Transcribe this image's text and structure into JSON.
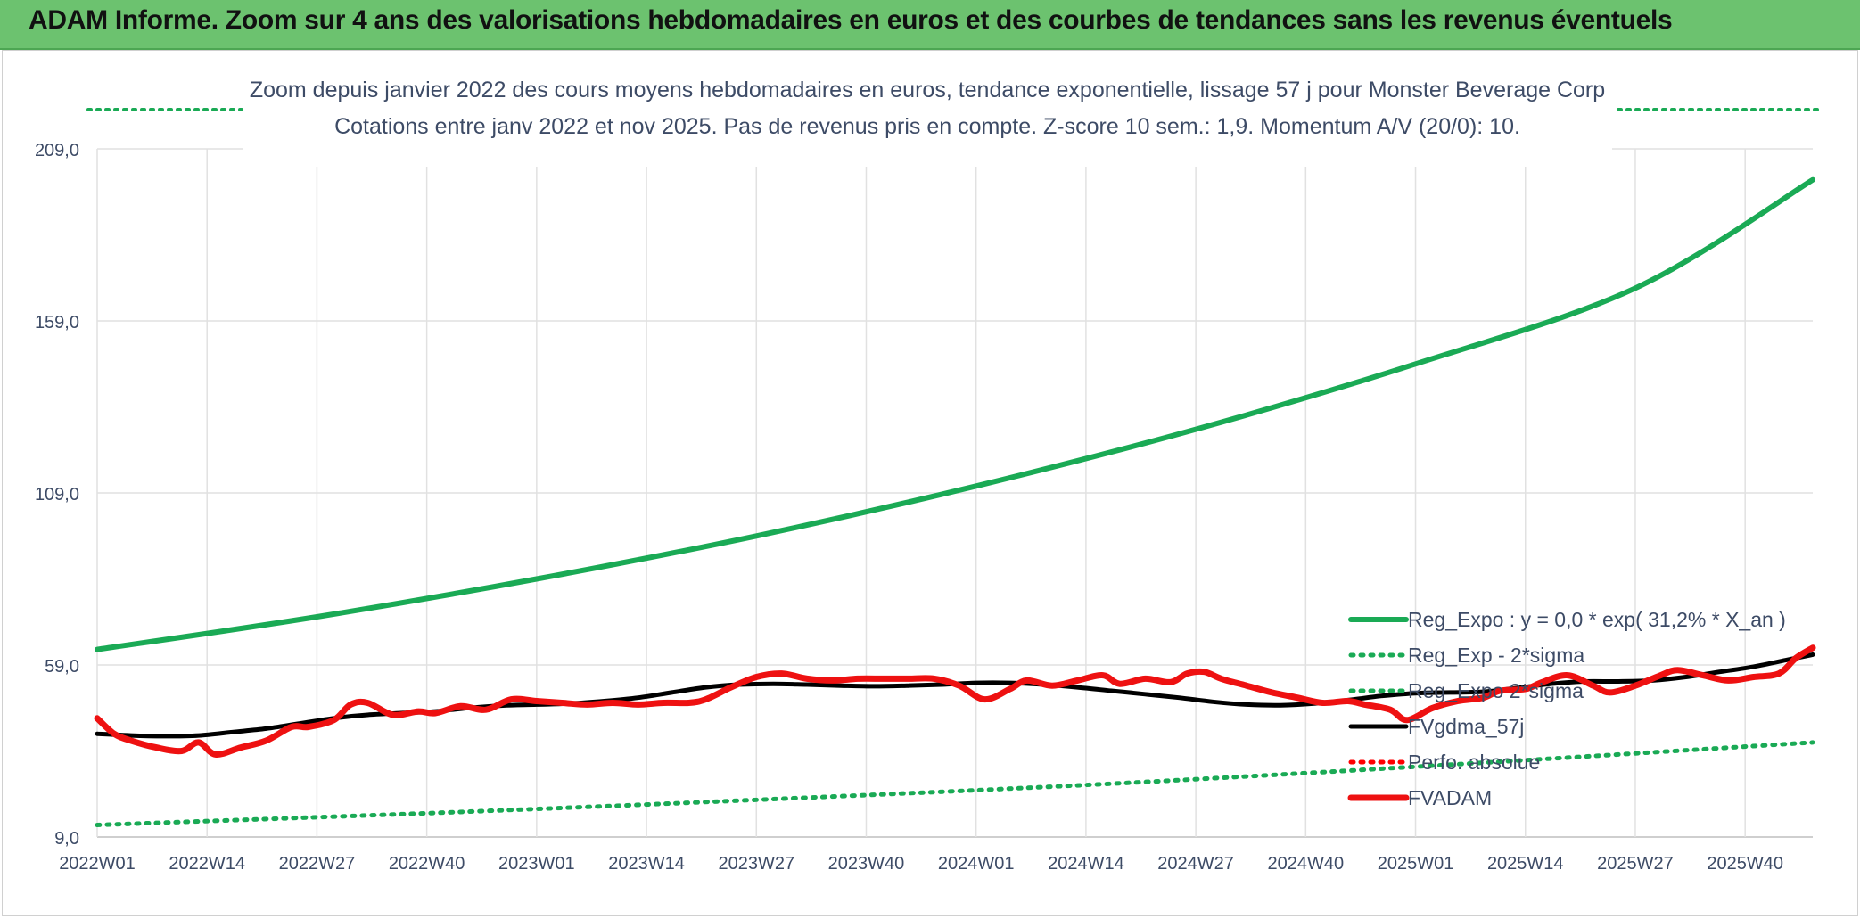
{
  "banner": {
    "title": "ADAM Informe. Zoom sur 4 ans des valorisations hebdomadaires en euros et des courbes de tendances sans les revenus éventuels"
  },
  "chart_data": {
    "type": "line",
    "title": "Zoom depuis janvier 2022 des cours moyens hebdomadaires en euros, tendance exponentielle, lissage 57 j pour Monster Beverage Corp",
    "subtitle": "Cotations entre janv 2022 et nov 2025. Pas de revenus pris en compte. Z-score 10 sem.: 1,9. Momentum A/V (20/0): 10.",
    "xlabel": "",
    "ylabel": "",
    "ylim": [
      9,
      209
    ],
    "y_ticks": [
      "9,0",
      "59,0",
      "109,0",
      "159,0",
      "209,0"
    ],
    "x_ticks": [
      "2022W01",
      "2022W14",
      "2022W27",
      "2022W40",
      "2023W01",
      "2023W14",
      "2023W27",
      "2023W40",
      "2024W01",
      "2024W14",
      "2024W27",
      "2024W40",
      "2025W01",
      "2025W14",
      "2025W27",
      "2025W40"
    ],
    "x_range_weeks": [
      0,
      203
    ],
    "grid": true,
    "legend_position": "bottom-right",
    "series": [
      {
        "name": "Reg_Expo : y = 0,0 * exp( 31,2% *  X_an )",
        "color": "#1aaa55",
        "style": "solid",
        "x": [
          0,
          26,
          52,
          78,
          104,
          130,
          156,
          182,
          203
        ],
        "y": [
          63.5,
          73,
          84,
          96.5,
          111,
          127.5,
          146.5,
          168.5,
          200
        ]
      },
      {
        "name": "Reg_Exp - 2*sigma",
        "color": "#1aaa55",
        "style": "dotted",
        "x": [
          0,
          40,
          80,
          120,
          160,
          203
        ],
        "y": [
          12.5,
          16,
          20,
          24.5,
          30,
          36.5
        ]
      },
      {
        "name": "Reg_Expo 2*sigma",
        "color": "#1aaa55",
        "style": "dotted",
        "x": [],
        "y": []
      },
      {
        "name": "FVgdma_57j",
        "color": "#000000",
        "style": "solid",
        "x": [
          0,
          4,
          8,
          12,
          16,
          20,
          24,
          28,
          32,
          36,
          40,
          44,
          48,
          52,
          56,
          60,
          64,
          68,
          72,
          76,
          80,
          84,
          88,
          92,
          96,
          100,
          104,
          108,
          112,
          116,
          120,
          124,
          128,
          132,
          136,
          140,
          144,
          148,
          152,
          156,
          160,
          164,
          168,
          172,
          176,
          180,
          184,
          188,
          192,
          196,
          200,
          203
        ],
        "y": [
          39,
          38.5,
          38.3,
          38.5,
          39.5,
          40.5,
          42,
          43.5,
          44.5,
          45,
          45.5,
          46.5,
          47.2,
          47.5,
          47.8,
          48.5,
          49.5,
          51,
          52.5,
          53.3,
          53.5,
          53.3,
          53,
          52.8,
          53,
          53.3,
          53.8,
          53.8,
          53.3,
          52.5,
          51.5,
          50.5,
          49.5,
          48.3,
          47.5,
          47.3,
          47.8,
          48.8,
          50,
          50.8,
          51,
          51.2,
          52.3,
          53.5,
          54.2,
          54.2,
          54.5,
          55.5,
          57,
          58.5,
          60.5,
          62
        ]
      },
      {
        "name": "Perfo. absolue",
        "color": "#ff0000",
        "style": "dotted",
        "x": [],
        "y": []
      },
      {
        "name": "FVADAM",
        "color": "#ee1111",
        "style": "solid",
        "x": [
          0,
          2,
          4,
          7,
          10,
          12,
          14,
          17,
          20,
          23,
          25,
          28,
          30,
          32,
          35,
          38,
          40,
          43,
          46,
          49,
          52,
          55,
          58,
          61,
          64,
          67,
          70,
          72,
          75,
          78,
          81,
          84,
          87,
          90,
          93,
          96,
          99,
          102,
          105,
          108,
          110,
          113,
          116,
          119,
          121,
          124,
          127,
          129,
          131,
          133,
          136,
          139,
          142,
          145,
          148,
          150,
          153,
          155,
          158,
          161,
          164,
          166,
          169,
          171,
          174,
          177,
          179,
          182,
          185,
          187,
          190,
          193,
          196,
          199,
          201,
          203
        ],
        "y": [
          43.5,
          39,
          37,
          35,
          34,
          36.5,
          33,
          35,
          37,
          41,
          41,
          43,
          47.5,
          48,
          44.5,
          45.5,
          45,
          47,
          46,
          49,
          48.5,
          48,
          47.5,
          48,
          47.5,
          48,
          48,
          49,
          52.5,
          55.5,
          56.5,
          55,
          54.5,
          55,
          55,
          55,
          55,
          53,
          49,
          52,
          54.5,
          53,
          54.5,
          56,
          53.5,
          55,
          54,
          56.5,
          57,
          55,
          53,
          51,
          49.5,
          48,
          48.5,
          47.5,
          46,
          43,
          46.5,
          48.5,
          49.5,
          51.5,
          52,
          54,
          56,
          53,
          51,
          53,
          56,
          57.5,
          56,
          54.5,
          55.5,
          56.5,
          61,
          64
        ]
      }
    ]
  }
}
